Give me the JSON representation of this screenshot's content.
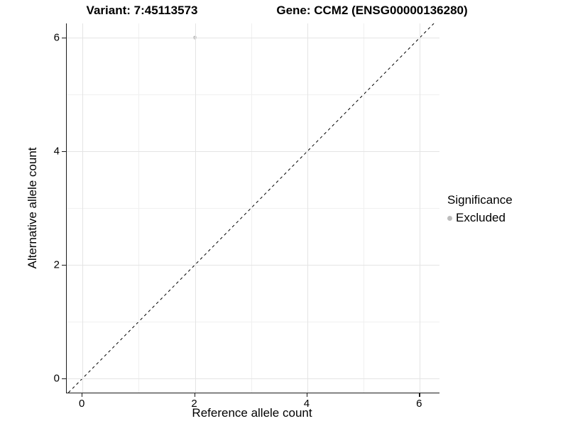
{
  "chart_data": {
    "type": "scatter",
    "title_left": "Variant: 7:45113573",
    "title_right": "Gene: CCM2 (ENSG00000136280)",
    "xlabel": "Reference allele count",
    "ylabel": "Alternative allele count",
    "xlim": [
      -0.28,
      6.35
    ],
    "ylim": [
      -0.25,
      6.25
    ],
    "x_ticks": [
      0,
      2,
      4,
      6
    ],
    "y_ticks": [
      0,
      2,
      4,
      6
    ],
    "x_minor_ticks": [
      1,
      3,
      5
    ],
    "y_minor_ticks": [
      1,
      3,
      5
    ],
    "grid": "on",
    "identity_line": {
      "equation": "y = x",
      "style": "dashed",
      "color": "#000000",
      "dash": "4 4"
    },
    "series": [
      {
        "name": "Excluded",
        "color": "#bdbdbd",
        "points": [
          {
            "x": 2,
            "y": 6
          }
        ]
      }
    ],
    "legend": {
      "title": "Significance",
      "position": "right",
      "entries": [
        {
          "label": "Excluded",
          "color": "#bdbdbd"
        }
      ]
    }
  },
  "colors": {
    "background": "#ffffff",
    "axis_line": "#1a1a1a",
    "grid_major": "#e4e4e4",
    "grid_minor": "#f0f0f0",
    "text": "#000000",
    "point": "#bdbdbd"
  }
}
